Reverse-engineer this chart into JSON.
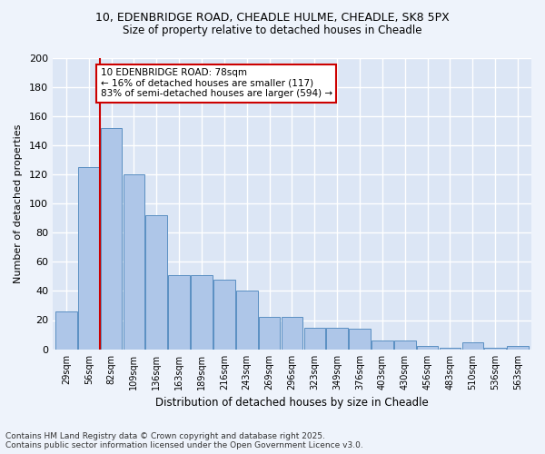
{
  "title1": "10, EDENBRIDGE ROAD, CHEADLE HULME, CHEADLE, SK8 5PX",
  "title2": "Size of property relative to detached houses in Cheadle",
  "xlabel": "Distribution of detached houses by size in Cheadle",
  "ylabel": "Number of detached properties",
  "bar_values": [
    26,
    125,
    152,
    120,
    92,
    51,
    51,
    48,
    40,
    22,
    22,
    15,
    15,
    14,
    6,
    6,
    2,
    1,
    5,
    1,
    2
  ],
  "categories": [
    "29sqm",
    "56sqm",
    "82sqm",
    "109sqm",
    "136sqm",
    "163sqm",
    "189sqm",
    "216sqm",
    "243sqm",
    "269sqm",
    "296sqm",
    "323sqm",
    "349sqm",
    "376sqm",
    "403sqm",
    "430sqm",
    "456sqm",
    "483sqm",
    "510sqm",
    "536sqm",
    "563sqm"
  ],
  "bar_color": "#aec6e8",
  "bar_edge_color": "#5a8fc2",
  "marker_line_color": "#cc0000",
  "annotation_text": "10 EDENBRIDGE ROAD: 78sqm\n← 16% of detached houses are smaller (117)\n83% of semi-detached houses are larger (594) →",
  "annotation_box_color": "#cc0000",
  "ylim": [
    0,
    200
  ],
  "yticks": [
    0,
    20,
    40,
    60,
    80,
    100,
    120,
    140,
    160,
    180,
    200
  ],
  "background_color": "#dce6f5",
  "grid_color": "#ffffff",
  "fig_color": "#eef3fb",
  "footer1": "Contains HM Land Registry data © Crown copyright and database right 2025.",
  "footer2": "Contains public sector information licensed under the Open Government Licence v3.0."
}
